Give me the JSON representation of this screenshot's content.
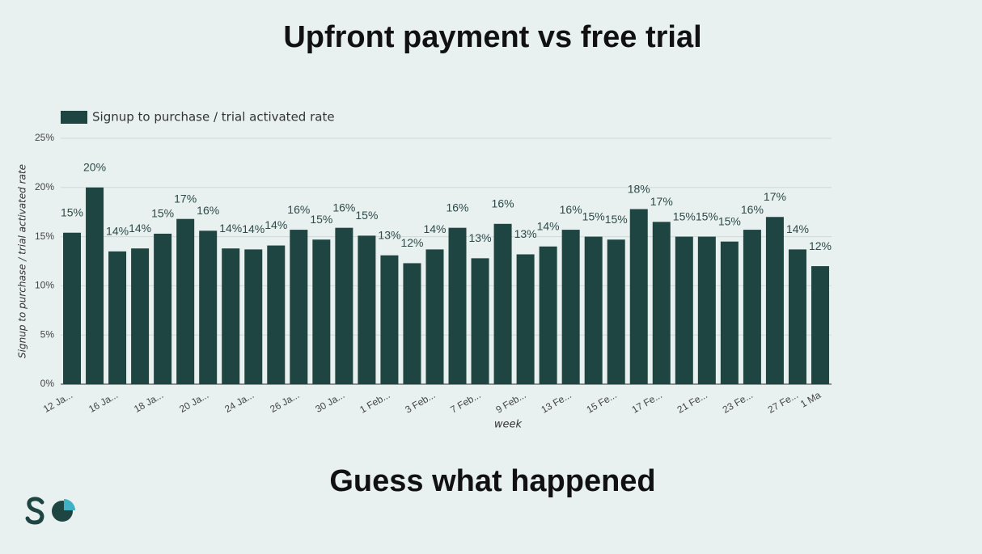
{
  "chart_data": {
    "type": "bar",
    "title": "Upfront payment vs free trial",
    "subtitle": "Guess what happened",
    "x_label": "week",
    "y_label": "Signup to purchase / trial activated rate",
    "series": [
      {
        "name": "Signup to purchase / trial activated rate",
        "color": "#1f4543",
        "values": [
          15.4,
          20.0,
          13.5,
          13.8,
          15.3,
          16.8,
          15.6,
          13.8,
          13.7,
          14.1,
          15.7,
          14.7,
          15.9,
          15.1,
          13.1,
          12.3,
          13.7,
          15.9,
          12.8,
          16.3,
          13.2,
          14.0,
          15.7,
          15.0,
          14.7,
          17.8,
          16.5,
          15.0,
          15.0,
          14.5,
          15.7,
          17.0,
          13.7,
          12.0
        ],
        "value_labels": [
          "15%",
          "20%",
          "14%",
          "14%",
          "15%",
          "17%",
          "16%",
          "14%",
          "14%",
          "14%",
          "16%",
          "15%",
          "16%",
          "15%",
          "13%",
          "12%",
          "14%",
          "16%",
          "13%",
          "16%",
          "13%",
          "14%",
          "16%",
          "15%",
          "15%",
          "18%",
          "17%",
          "15%",
          "15%",
          "15%",
          "16%",
          "17%",
          "14%",
          "12%"
        ]
      }
    ],
    "categories": [
      "12 Ja...",
      null,
      "16 Ja...",
      null,
      "18 Ja...",
      null,
      "20 Ja...",
      null,
      "24 Ja...",
      null,
      "26 Ja...",
      null,
      "30 Ja...",
      null,
      "1 Feb...",
      null,
      "3 Feb...",
      null,
      "7 Feb...",
      null,
      "9 Feb...",
      null,
      "13 Fe...",
      null,
      "15 Fe...",
      null,
      "17 Fe...",
      null,
      "21 Fe...",
      null,
      "23 Fe...",
      null,
      "27 Fe...",
      "1 Ma"
    ],
    "ylim": [
      0,
      25
    ],
    "yticks": [
      {
        "value": 0,
        "label": "0%"
      },
      {
        "value": 5,
        "label": "5%"
      },
      {
        "value": 10,
        "label": "10%"
      },
      {
        "value": 15,
        "label": "15%"
      },
      {
        "value": 20,
        "label": "20%"
      },
      {
        "value": 25,
        "label": "25%"
      }
    ],
    "grid": true,
    "legend": "top-left"
  }
}
